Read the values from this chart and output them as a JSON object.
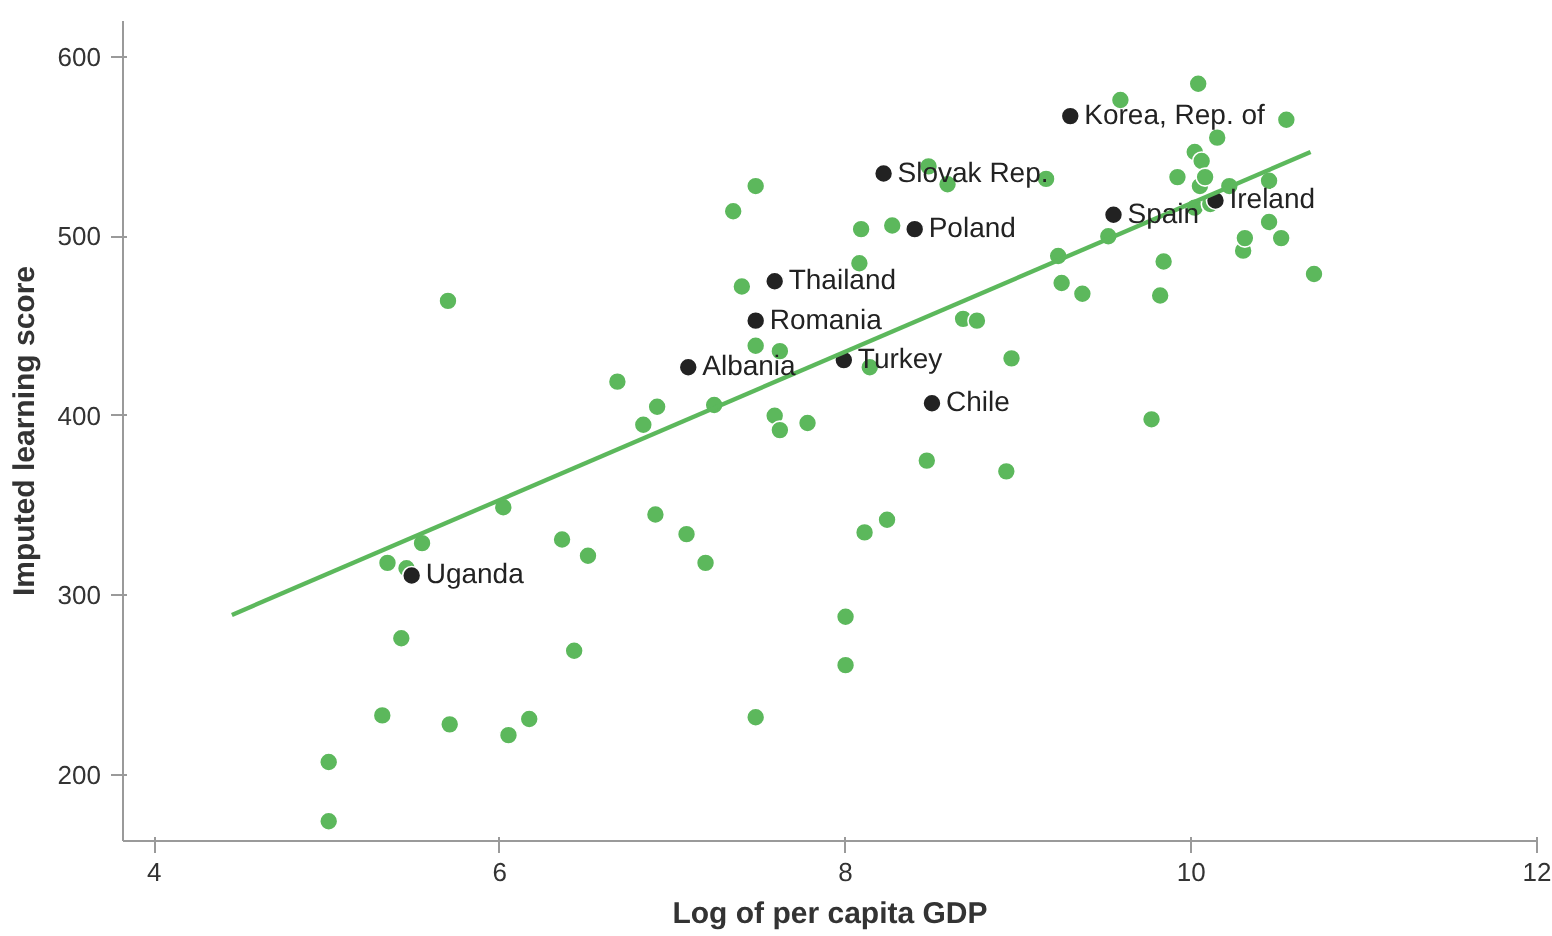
{
  "chart_data": {
    "type": "scatter",
    "xlabel": "Log of per capita GDP",
    "ylabel": "Imputed learning score",
    "xlim": [
      3.82,
      12
    ],
    "ylim": [
      163,
      620
    ],
    "xticks": [
      4,
      6,
      8,
      10,
      12
    ],
    "yticks": [
      200,
      300,
      400,
      500,
      600
    ],
    "grid": false,
    "marker": "circle",
    "series": [
      {
        "color": "#5cb85c",
        "x": [
          5.01,
          5.01,
          5.32,
          5.35,
          5.43,
          5.46,
          5.55,
          5.7,
          5.71,
          6.02,
          6.05,
          6.17,
          6.36,
          6.51,
          6.43,
          6.68,
          6.83,
          6.91,
          6.9,
          7.08,
          7.19,
          7.24,
          7.35,
          7.48,
          7.4,
          7.48,
          7.62,
          7.59,
          7.62,
          7.78,
          7.48,
          8.0,
          8.0,
          8.08,
          8.09,
          8.27,
          8.14,
          8.11,
          8.24,
          8.47,
          8.48,
          8.59,
          8.68,
          8.76,
          8.93,
          8.96,
          9.16,
          9.23,
          9.25,
          9.37,
          9.52,
          9.59,
          9.77,
          9.82,
          9.84,
          9.92,
          10.02,
          10.04,
          10.06,
          10.05,
          10.08,
          10.02,
          10.11,
          10.15,
          10.22,
          10.45,
          10.45,
          10.3,
          10.31,
          10.52,
          10.55,
          10.71
        ],
        "values": [
          207,
          174,
          233,
          318,
          276,
          315,
          329,
          464,
          228,
          349,
          222,
          231,
          331,
          322,
          269,
          419,
          395,
          405,
          345,
          334,
          318,
          406,
          514,
          528,
          472,
          439,
          436,
          400,
          392,
          396,
          232,
          288,
          261,
          485,
          504,
          506,
          427,
          335,
          342,
          375,
          539,
          529,
          454,
          453,
          369,
          432,
          532,
          489,
          474,
          468,
          500,
          576,
          398,
          467,
          486,
          533,
          547,
          585,
          542,
          528,
          533,
          516,
          518,
          555,
          528,
          531,
          508,
          492,
          499,
          499,
          565,
          479
        ]
      },
      {
        "color": "#222222",
        "x": [
          9.3,
          8.22,
          8.4,
          7.59,
          7.48,
          7.09,
          7.99,
          8.5,
          9.55,
          10.14,
          5.49
        ],
        "values": [
          567,
          535,
          504,
          475,
          453,
          427,
          431,
          407,
          512,
          520,
          311
        ]
      },
      {
        "type": "line",
        "marker": "none",
        "color": "#5cb85c",
        "x": [
          4.45,
          10.69
        ],
        "values": [
          289,
          547
        ]
      }
    ],
    "annotations": [
      {
        "text": "Korea, Rep. of",
        "x": 9.3,
        "y": 567
      },
      {
        "text": "Slovak Rep.",
        "x": 8.22,
        "y": 535
      },
      {
        "text": "Poland",
        "x": 8.4,
        "y": 504
      },
      {
        "text": "Thailand",
        "x": 7.59,
        "y": 475
      },
      {
        "text": "Romania",
        "x": 7.48,
        "y": 453
      },
      {
        "text": "Albania",
        "x": 7.09,
        "y": 427
      },
      {
        "text": "Turkey",
        "x": 7.99,
        "y": 431
      },
      {
        "text": "Chile",
        "x": 8.5,
        "y": 407
      },
      {
        "text": "Spain",
        "x": 9.55,
        "y": 512
      },
      {
        "text": "Ireland",
        "x": 10.14,
        "y": 520
      },
      {
        "text": "Uganda",
        "x": 5.49,
        "y": 311
      }
    ]
  }
}
